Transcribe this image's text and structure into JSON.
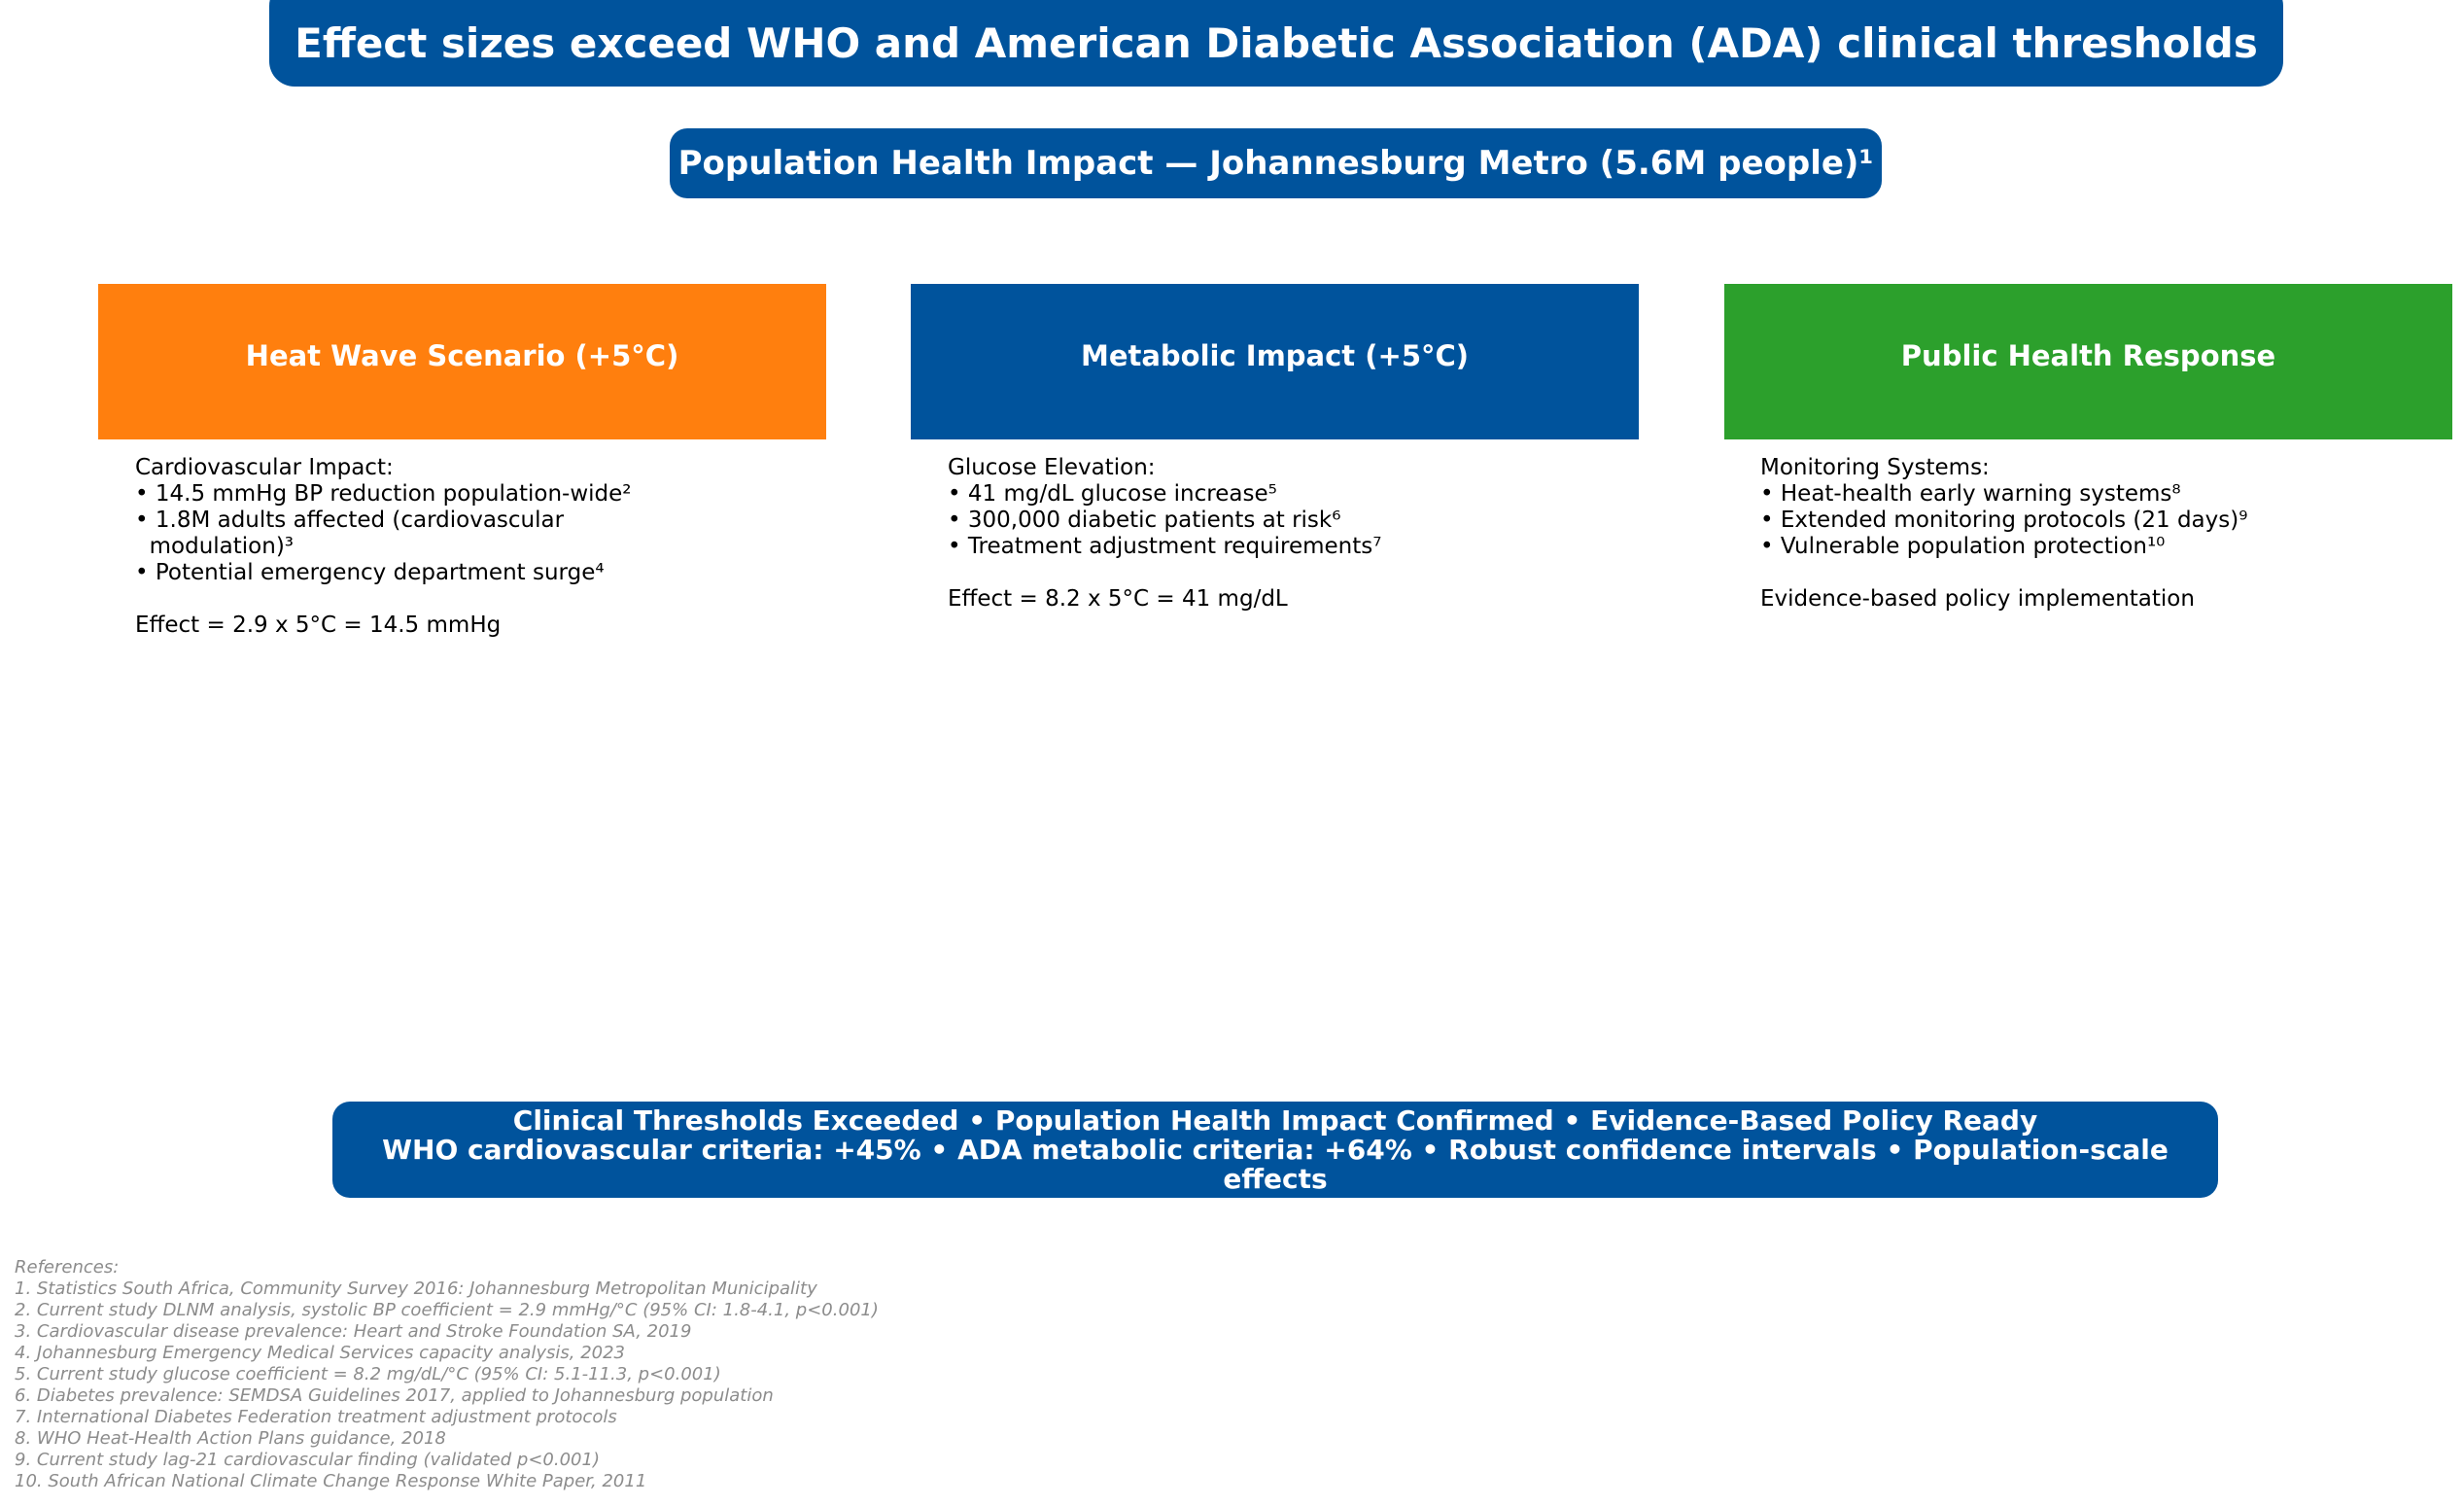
{
  "title": "Effect sizes exceed WHO and American Diabetic Association (ADA) clinical thresholds",
  "subtitle": "Population Health Impact — Johannesburg Metro (5.6M people)¹",
  "colors": {
    "primary_blue": "#00539c",
    "orange": "#ff7f0e",
    "green": "#2ca02c",
    "reference_gray": "#8c8c8c"
  },
  "columns": [
    {
      "header": "Heat Wave Scenario (+5°C)",
      "color": "#ff7f0e",
      "heading": "Cardiovascular Impact:",
      "bullets": [
        "• 14.5 mmHg BP reduction population-wide²",
        "• 1.8M adults affected (cardiovascular",
        "  modulation)³",
        "• Potential emergency department surge⁴"
      ],
      "footer": "Effect = 2.9 x 5°C = 14.5 mmHg"
    },
    {
      "header": "Metabolic Impact (+5°C)",
      "color": "#00539c",
      "heading": "Glucose Elevation:",
      "bullets": [
        "• 41 mg/dL glucose increase⁵",
        "• 300,000 diabetic patients at risk⁶",
        "• Treatment adjustment requirements⁷"
      ],
      "footer": "Effect = 8.2 x 5°C = 41 mg/dL"
    },
    {
      "header": "Public Health Response",
      "color": "#2ca02c",
      "heading": "Monitoring Systems:",
      "bullets": [
        "• Heat-health early warning systems⁸",
        "• Extended monitoring protocols (21 days)⁹",
        "• Vulnerable population protection¹⁰"
      ],
      "footer": "Evidence-based policy implementation"
    }
  ],
  "summary": {
    "line1": "Clinical Thresholds Exceeded • Population Health Impact Confirmed • Evidence-Based Policy Ready",
    "line2": "WHO cardiovascular criteria: +45% • ADA metabolic criteria: +64% • Robust confidence intervals • Population-scale effects"
  },
  "references": [
    "References:",
    "1. Statistics South Africa, Community Survey 2016: Johannesburg Metropolitan Municipality",
    "2. Current study DLNM analysis, systolic BP coefficient = 2.9 mmHg/°C (95% CI: 1.8-4.1, p<0.001)",
    "3. Cardiovascular disease prevalence: Heart and Stroke Foundation SA, 2019",
    "4. Johannesburg Emergency Medical Services capacity analysis, 2023",
    "5. Current study glucose coefficient = 8.2 mg/dL/°C (95% CI: 5.1-11.3, p<0.001)",
    "6. Diabetes prevalence: SEMDSA Guidelines 2017, applied to Johannesburg population",
    "7. International Diabetes Federation treatment adjustment protocols",
    "8. WHO Heat-Health Action Plans guidance, 2018",
    "9. Current study lag-21 cardiovascular finding (validated p<0.001)",
    "10. South African National Climate Change Response White Paper, 2011"
  ]
}
